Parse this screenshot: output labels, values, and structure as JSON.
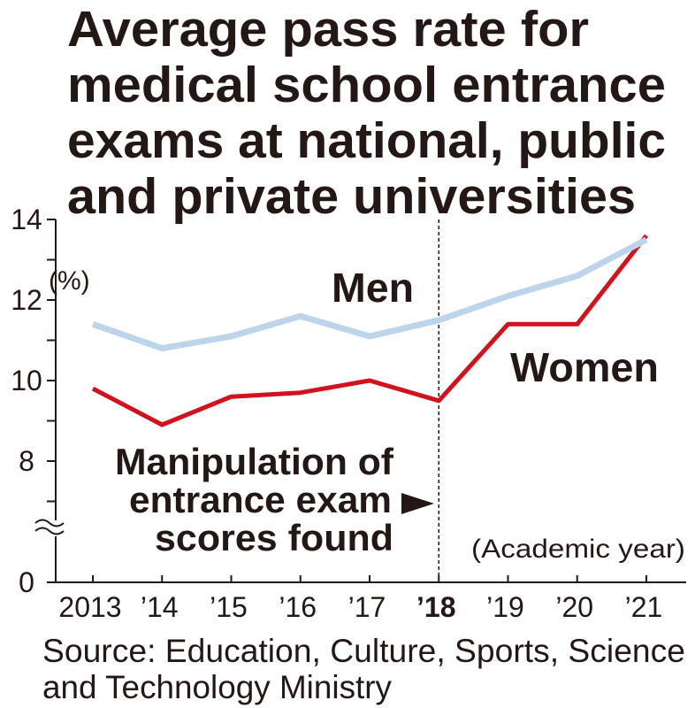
{
  "chart_data": {
    "type": "line",
    "title": "Average pass rate for\nmedical school entrance\nexams at national, public\nand private universities",
    "x": [
      "2013",
      "’14",
      "’15",
      "’16",
      "’17",
      "’18",
      "’19",
      "’20",
      "’21"
    ],
    "xlabel": "(Academic year)",
    "ylabel": "(%)",
    "yticks": [
      14,
      12,
      10,
      8,
      0
    ],
    "ylim": [
      0,
      14
    ],
    "y_axis_break": true,
    "grid": false,
    "series": [
      {
        "name": "Men",
        "color": "#bcd5ea",
        "values": [
          11.4,
          10.8,
          11.1,
          11.6,
          11.1,
          11.5,
          12.1,
          12.6,
          13.5
        ]
      },
      {
        "name": "Women",
        "color": "#d2121c",
        "values": [
          9.8,
          8.9,
          9.6,
          9.7,
          10.0,
          9.5,
          11.4,
          11.4,
          13.6
        ]
      }
    ],
    "annotation": {
      "text": "Manipulation of\nentrance exam\nscores found",
      "x_index": 5,
      "icon": "triangle-right-icon"
    },
    "source": "Source: Education, Culture, Sports, Science\nand Technology Ministry"
  }
}
